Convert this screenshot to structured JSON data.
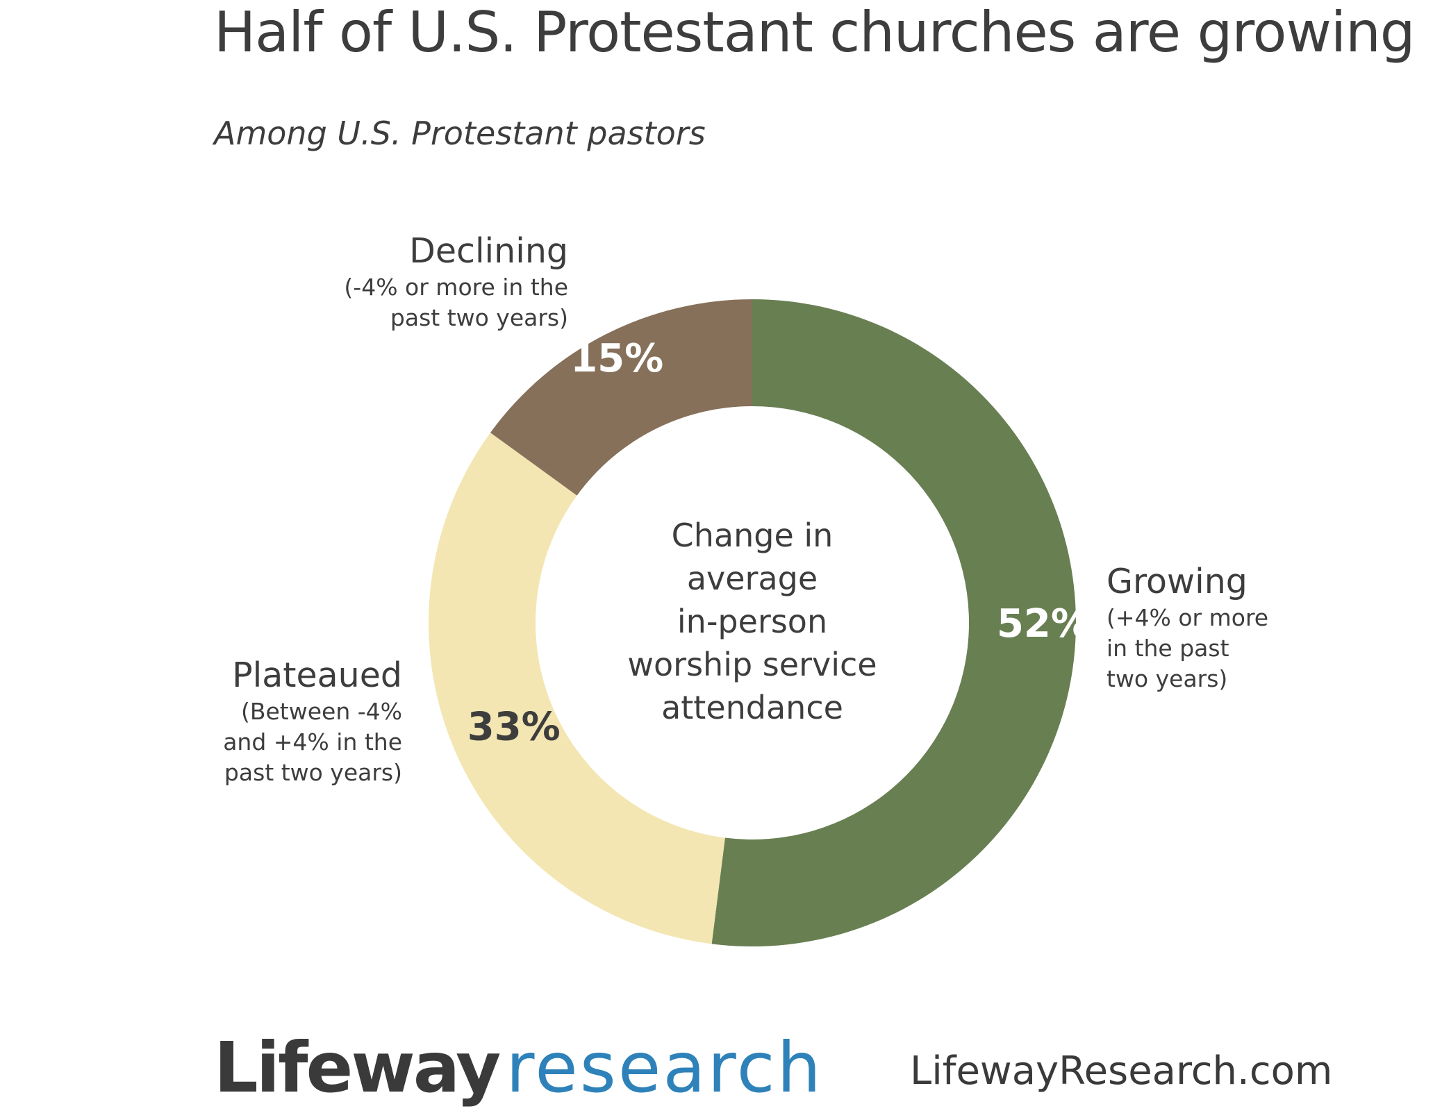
{
  "header": {
    "title": "Half of U.S. Protestant churches are growing",
    "subtitle": "Among U.S. Protestant pastors"
  },
  "chart_data": {
    "type": "pie",
    "donut": true,
    "title": "Half of U.S. Protestant churches are growing",
    "subtitle": "Among U.S. Protestant pastors",
    "center_label": "Change in\naverage\nin-person\nworship service\nattendance",
    "slices": [
      {
        "label": "Growing",
        "note": "(+4% or more\nin the past\ntwo years)",
        "value": 52,
        "display": "52%",
        "color": "#687f52",
        "value_text_color": "#ffffff"
      },
      {
        "label": "Plateaued",
        "note": "(Between -4%\nand +4% in the\npast two years)",
        "value": 33,
        "display": "33%",
        "color": "#f3e6b2",
        "value_text_color": "#3d3d3d"
      },
      {
        "label": "Declining",
        "note": "(-4% or more in the\npast two years)",
        "value": 15,
        "display": "15%",
        "color": "#86705a",
        "value_text_color": "#ffffff"
      }
    ]
  },
  "footer": {
    "brand_main": "Lifeway",
    "brand_sub": "research",
    "website": "LifewayResearch.com"
  },
  "colors": {
    "text": "#3d3d3d",
    "brand_blue": "#2e82b9"
  }
}
